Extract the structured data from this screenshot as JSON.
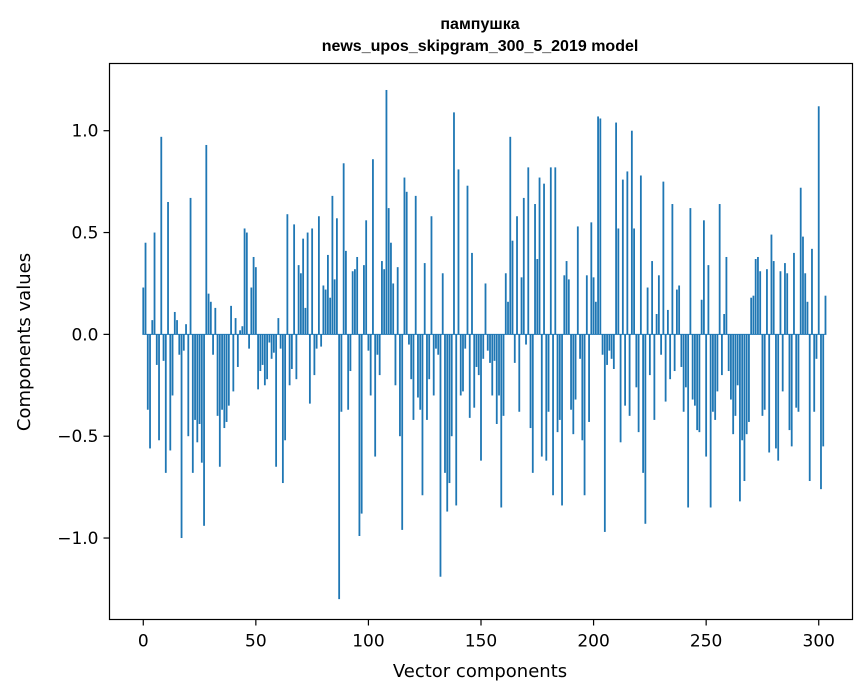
{
  "chart_data": {
    "type": "bar",
    "title": "пампушка",
    "subtitle": "news_upos_skipgram_300_5_2019 model",
    "xlabel": "Vector components",
    "ylabel": "Components values",
    "xlim": [
      -15,
      315
    ],
    "ylim": [
      -1.4,
      1.33
    ],
    "xticks": [
      0,
      50,
      100,
      150,
      200,
      250,
      300
    ],
    "xtick_labels": [
      "0",
      "50",
      "100",
      "150",
      "200",
      "250",
      "300"
    ],
    "yticks": [
      -1.0,
      -0.5,
      0.0,
      0.5,
      1.0
    ],
    "ytick_labels": [
      "−1.0",
      "−0.5",
      "0.0",
      "0.5",
      "1.0"
    ],
    "grid": false,
    "bar_color": "#1f77b4",
    "x_start": 0,
    "values": [
      0.23,
      0.45,
      -0.37,
      -0.56,
      0.07,
      0.5,
      -0.15,
      -0.52,
      0.97,
      -0.13,
      -0.68,
      0.65,
      -0.57,
      -0.3,
      0.11,
      0.07,
      -0.1,
      -1.0,
      -0.08,
      0.05,
      -0.5,
      0.67,
      -0.68,
      -0.42,
      -0.53,
      -0.44,
      -0.63,
      -0.94,
      0.93,
      0.2,
      0.16,
      -0.1,
      0.13,
      -0.4,
      -0.65,
      -0.37,
      -0.46,
      -0.43,
      -0.35,
      0.14,
      -0.28,
      0.08,
      -0.16,
      0.02,
      0.04,
      0.52,
      0.5,
      -0.07,
      0.23,
      0.38,
      0.33,
      -0.27,
      -0.18,
      -0.15,
      -0.25,
      -0.22,
      -0.04,
      -0.12,
      -0.09,
      -0.65,
      0.08,
      -0.07,
      -0.73,
      -0.52,
      0.59,
      -0.25,
      -0.17,
      0.54,
      -0.22,
      0.34,
      0.3,
      0.47,
      0.13,
      0.5,
      -0.34,
      0.52,
      -0.2,
      -0.07,
      0.58,
      -0.06,
      0.24,
      0.22,
      0.39,
      0.18,
      0.68,
      0.27,
      0.57,
      -1.3,
      -0.38,
      0.84,
      0.41,
      -0.37,
      -0.18,
      0.31,
      0.32,
      0.38,
      -0.99,
      -0.88,
      0.34,
      0.56,
      -0.08,
      -0.3,
      0.86,
      -0.6,
      -0.1,
      -0.2,
      0.36,
      0.32,
      1.2,
      0.62,
      0.45,
      0.25,
      -0.25,
      0.33,
      -0.5,
      -0.96,
      0.77,
      0.7,
      -0.05,
      -0.22,
      -0.42,
      0.68,
      -0.31,
      -0.37,
      -0.79,
      0.35,
      -0.42,
      -0.22,
      0.58,
      -0.3,
      -0.07,
      -0.1,
      -1.19,
      0.3,
      -0.68,
      -0.87,
      -0.73,
      -0.5,
      1.09,
      -0.84,
      0.81,
      -0.3,
      -0.28,
      -0.07,
      0.73,
      -0.41,
      0.4,
      -0.36,
      -0.16,
      -0.2,
      -0.62,
      -0.12,
      0.25,
      -0.08,
      -0.14,
      -0.3,
      -0.13,
      -0.44,
      -0.3,
      -0.85,
      -0.4,
      0.3,
      0.16,
      0.97,
      0.46,
      -0.14,
      0.58,
      -0.38,
      0.28,
      0.67,
      -0.05,
      0.82,
      -0.46,
      -0.68,
      0.64,
      0.37,
      0.77,
      -0.6,
      0.74,
      -0.62,
      -0.38,
      0.82,
      -0.79,
      0.82,
      -0.48,
      -0.42,
      -0.84,
      0.29,
      0.36,
      0.27,
      -0.37,
      -0.49,
      -0.32,
      0.53,
      -0.12,
      -0.52,
      -0.79,
      0.29,
      -0.43,
      0.55,
      0.28,
      0.16,
      1.07,
      1.06,
      -0.1,
      -0.97,
      -0.15,
      -0.08,
      -0.12,
      -0.17,
      1.04,
      0.52,
      -0.53,
      0.76,
      -0.35,
      0.8,
      -0.4,
      1.0,
      0.52,
      -0.26,
      -0.48,
      0.78,
      -0.68,
      -0.93,
      0.23,
      -0.2,
      0.36,
      -0.42,
      0.1,
      0.29,
      -0.1,
      0.75,
      -0.33,
      0.12,
      -0.22,
      0.64,
      -0.18,
      0.22,
      0.24,
      -0.16,
      -0.38,
      -0.26,
      -0.85,
      0.62,
      -0.32,
      -0.35,
      -0.47,
      -0.48,
      0.17,
      0.56,
      -0.6,
      0.34,
      -0.85,
      -0.38,
      -0.42,
      -0.28,
      0.64,
      -0.2,
      0.1,
      0.38,
      -0.18,
      -0.32,
      -0.49,
      -0.4,
      -0.25,
      -0.82,
      -0.52,
      -0.72,
      -0.49,
      -0.43,
      0.18,
      0.19,
      0.37,
      0.38,
      0.31,
      -0.4,
      -0.37,
      0.32,
      -0.58,
      0.49,
      0.36,
      -0.56,
      -0.62,
      0.31,
      -0.28,
      0.35,
      0.3,
      -0.47,
      -0.55,
      0.4,
      -0.36,
      -0.38,
      0.72,
      0.48,
      0.3,
      0.16,
      -0.72,
      0.42,
      -0.38,
      -0.12,
      1.12,
      -0.76,
      -0.55,
      0.19
    ]
  }
}
